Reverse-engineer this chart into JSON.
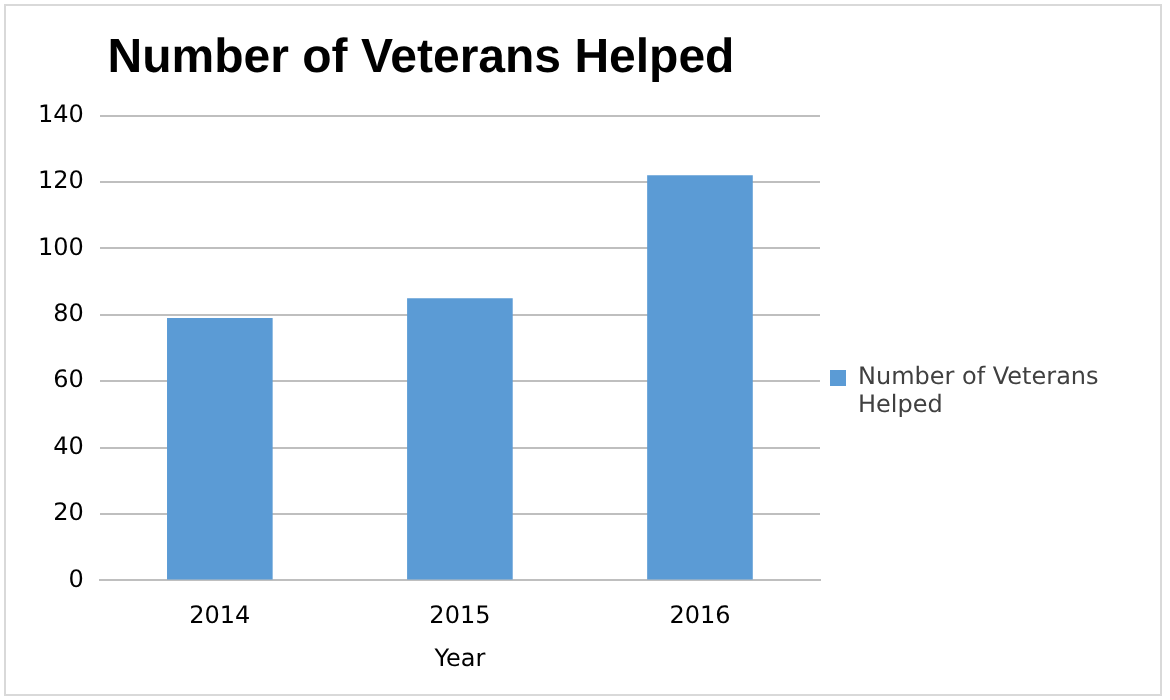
{
  "chart_data": {
    "type": "bar",
    "title": "Number of Veterans Helped",
    "xlabel": "Year",
    "categories": [
      "2014",
      "2015",
      "2016"
    ],
    "series": [
      {
        "name": "Number of Veterans Helped",
        "color": "#5b9bd5",
        "values": [
          79,
          85,
          122
        ]
      }
    ],
    "ylim": [
      0,
      140
    ],
    "yticks": [
      0,
      20,
      40,
      60,
      80,
      100,
      120,
      140
    ],
    "grid": "y",
    "legend": "right"
  }
}
